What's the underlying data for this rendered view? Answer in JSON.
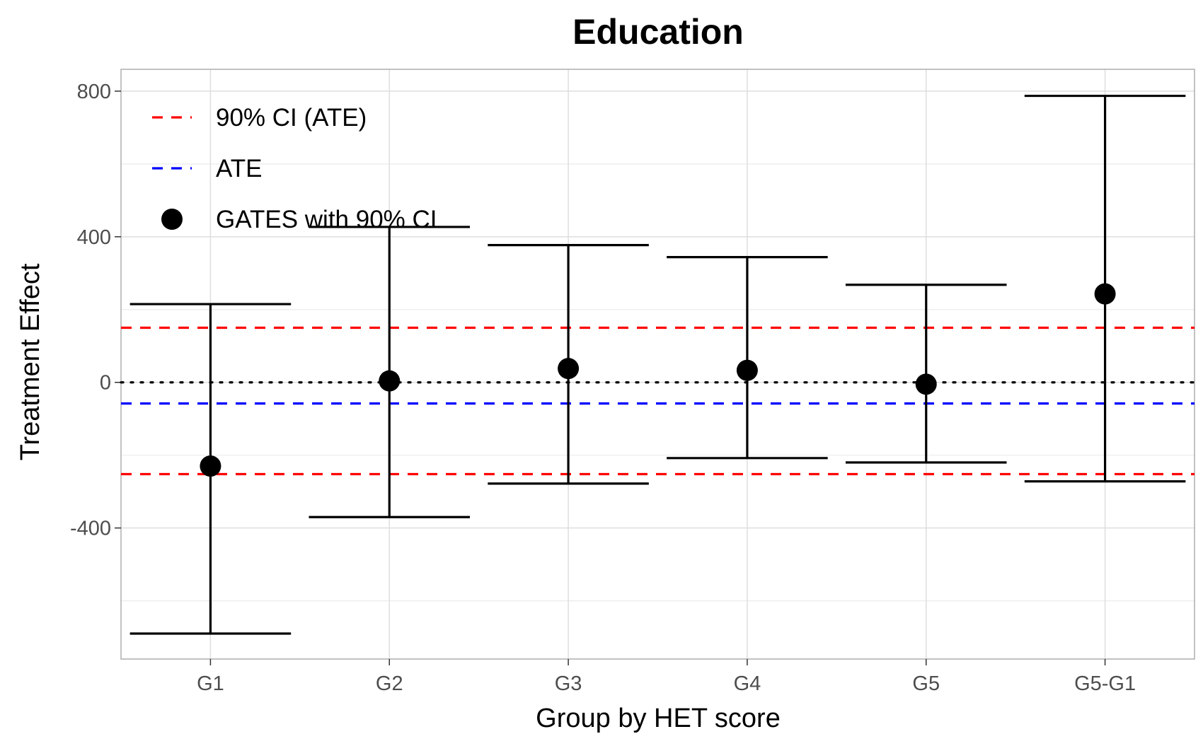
{
  "chart_data": {
    "type": "errorbar",
    "title": "Education",
    "xlabel": "Group by HET score",
    "ylabel": "Treatment Effect",
    "categories": [
      "G1",
      "G2",
      "G3",
      "G4",
      "G5",
      "G5-G1"
    ],
    "ylim": [
      -760,
      860
    ],
    "yticks": [
      800,
      400,
      0,
      -400
    ],
    "ytick_labels": [
      "800",
      "400",
      "0",
      "-400"
    ],
    "grid": true,
    "legend_position": "top-left",
    "series": [
      {
        "name": "GATES with 90% CI",
        "estimates": [
          -230,
          4,
          38,
          33,
          -5,
          243
        ],
        "ci_lower": [
          -690,
          -370,
          -278,
          -208,
          -220,
          -272
        ],
        "ci_upper": [
          215,
          427,
          377,
          344,
          268,
          787
        ]
      }
    ],
    "reference_lines": [
      {
        "name": "90% CI (ATE)",
        "values": [
          150,
          -252
        ],
        "color": "#ff0000",
        "style": "dashed"
      },
      {
        "name": "ATE",
        "values": [
          -58
        ],
        "color": "#0000ff",
        "style": "dashed"
      },
      {
        "name": "",
        "values": [
          0
        ],
        "color": "#000000",
        "style": "dotted"
      }
    ],
    "legend": [
      {
        "label": "90% CI (ATE)",
        "kind": "dashed-line",
        "color": "#ff0000"
      },
      {
        "label": "ATE",
        "kind": "dashed-line",
        "color": "#0000ff"
      },
      {
        "label": "GATES with 90% CI",
        "kind": "point",
        "color": "#000000"
      }
    ]
  }
}
